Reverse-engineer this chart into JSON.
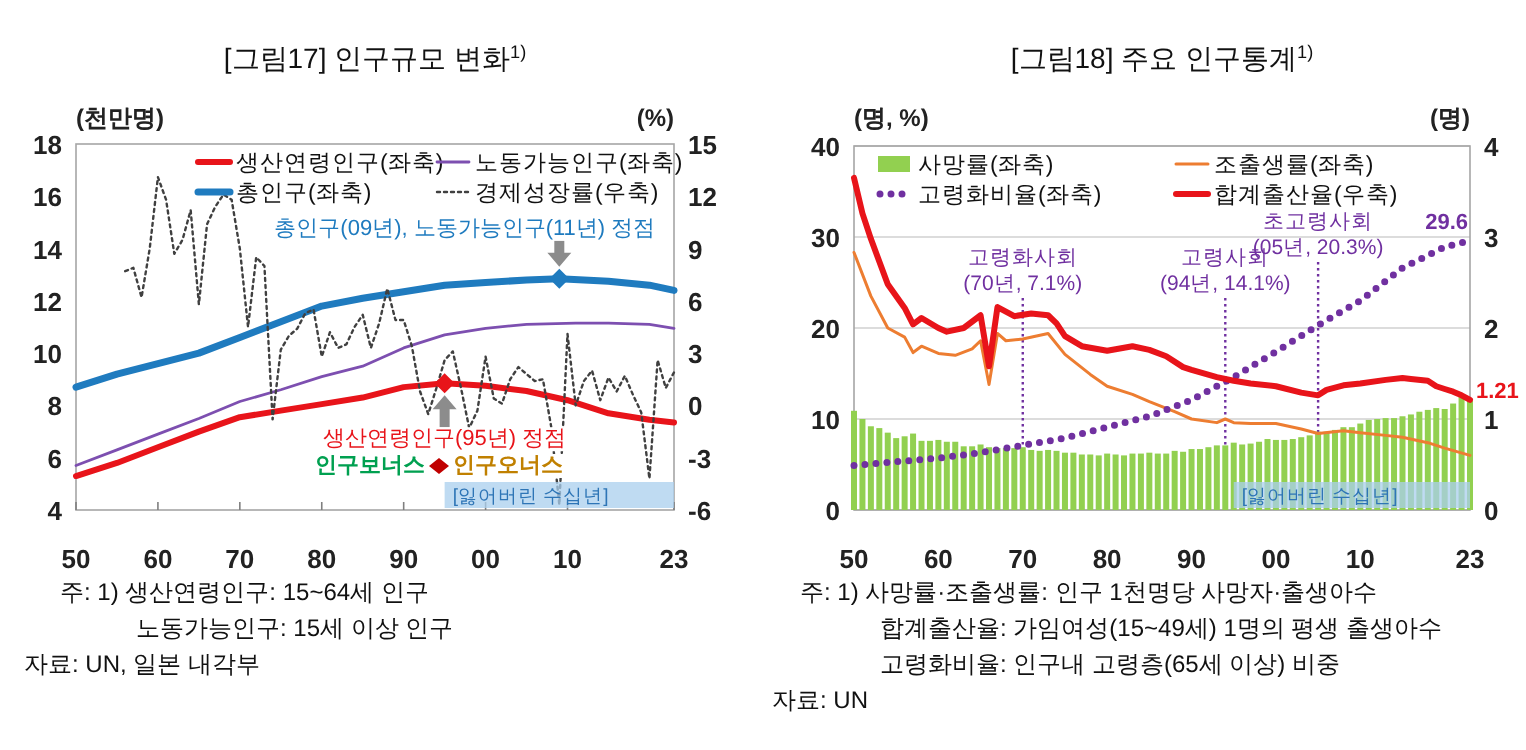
{
  "chart_data": [
    {
      "type": "line",
      "title": "[그림17] 인구규모 변화$^{1)}$",
      "ylabel": "(천만명)",
      "y2label": "(%)",
      "xlim": [
        1950,
        2023
      ],
      "xticks": [
        {
          "value": 1950,
          "label": "50"
        },
        {
          "value": 1960,
          "label": "60"
        },
        {
          "value": 1970,
          "label": "70"
        },
        {
          "value": 1980,
          "label": "80"
        },
        {
          "value": 1990,
          "label": "90"
        },
        {
          "value": 2000,
          "label": "00"
        },
        {
          "value": 2010,
          "label": "10"
        },
        {
          "value": 2023,
          "label": "23"
        }
      ],
      "ylim": [
        4,
        18
      ],
      "yticks": [
        4,
        6,
        8,
        10,
        12,
        14,
        16,
        18
      ],
      "y2lim": [
        -6,
        15
      ],
      "y2ticks": [
        -6,
        -3,
        0,
        3,
        6,
        9,
        12,
        15
      ],
      "legend": "top right",
      "grid": false,
      "series": [
        {
          "name": "생산연령인구(좌축)",
          "color": "#e8141a",
          "x": [
            1950,
            1955,
            1960,
            1965,
            1970,
            1975,
            1980,
            1985,
            1990,
            1995,
            2000,
            2005,
            2010,
            2015,
            2020,
            2023
          ],
          "values": [
            5.3,
            5.8,
            6.4,
            7.0,
            7.55,
            7.8,
            8.05,
            8.3,
            8.7,
            8.85,
            8.75,
            8.55,
            8.2,
            7.7,
            7.45,
            7.35
          ]
        },
        {
          "name": "노동가능인구(좌축)",
          "color": "#7d4fb0",
          "x": [
            1950,
            1955,
            1960,
            1965,
            1970,
            1975,
            1980,
            1985,
            1990,
            1995,
            2000,
            2005,
            2011,
            2015,
            2020,
            2023
          ],
          "values": [
            5.7,
            6.3,
            6.9,
            7.5,
            8.15,
            8.6,
            9.1,
            9.5,
            10.2,
            10.7,
            10.95,
            11.1,
            11.15,
            11.15,
            11.1,
            10.95
          ]
        },
        {
          "name": "총인구(좌축)",
          "color": "#1f7bbf",
          "x": [
            1950,
            1955,
            1960,
            1965,
            1970,
            1975,
            1980,
            1985,
            1990,
            1995,
            2000,
            2005,
            2009,
            2015,
            2020,
            2023
          ],
          "values": [
            8.7,
            9.2,
            9.6,
            10.0,
            10.6,
            11.2,
            11.8,
            12.1,
            12.35,
            12.6,
            12.7,
            12.8,
            12.85,
            12.75,
            12.6,
            12.4
          ]
        },
        {
          "name": "경제성장률(우축)",
          "color": "#404040",
          "axis": "y2",
          "line_style": "dotted",
          "x": [
            1956,
            1957,
            1958,
            1959,
            1960,
            1961,
            1962,
            1963,
            1964,
            1965,
            1966,
            1967,
            1968,
            1969,
            1970,
            1971,
            1972,
            1973,
            1974,
            1975,
            1976,
            1977,
            1978,
            1979,
            1980,
            1981,
            1982,
            1983,
            1984,
            1985,
            1986,
            1987,
            1988,
            1989,
            1990,
            1991,
            1992,
            1993,
            1994,
            1995,
            1996,
            1997,
            1998,
            1999,
            2000,
            2001,
            2002,
            2003,
            2004,
            2005,
            2006,
            2007,
            2008,
            2009,
            2010,
            2011,
            2012,
            2013,
            2014,
            2015,
            2016,
            2017,
            2018,
            2019,
            2020,
            2021,
            2022,
            2023
          ],
          "values": [
            7.7,
            7.9,
            6.2,
            9.0,
            13.1,
            11.8,
            8.7,
            9.5,
            11.2,
            5.8,
            10.4,
            11.4,
            12.1,
            11.8,
            9.0,
            4.5,
            8.5,
            8.0,
            -0.8,
            3.2,
            4.0,
            4.4,
            5.3,
            5.5,
            2.8,
            4.2,
            3.3,
            3.5,
            4.5,
            5.2,
            3.3,
            4.7,
            6.7,
            4.9,
            4.9,
            3.4,
            0.8,
            -0.5,
            1.0,
            2.6,
            3.1,
            1.0,
            -1.3,
            -0.3,
            2.8,
            0.4,
            0.1,
            1.5,
            2.2,
            1.8,
            1.4,
            1.5,
            -1.2,
            -5.7,
            4.1,
            0.0,
            1.4,
            2.0,
            0.3,
            1.6,
            0.8,
            1.7,
            0.6,
            -0.4,
            -4.2,
            2.6,
            1.0,
            1.9
          ]
        }
      ],
      "bands": [
        {
          "axis": "x",
          "from": 1995,
          "to": 2023,
          "label": "[잃어버린 수십년]",
          "color": "#a9cfee"
        }
      ],
      "annotations": [
        {
          "text": "총인구(09년), 노동가능인구(11년) 정점",
          "x": 2009,
          "y": 12.85
        },
        {
          "text": "생산연령인구(95년) 정점",
          "x": 1995,
          "y": 8.85
        },
        "인구보너스",
        "인구오너스",
        "주: 1) 생산연령인구: 15~64세 인구",
        "노동가능인구: 15세 이상 인구",
        "자료: UN, 일본 내각부"
      ]
    },
    {
      "type": "bar",
      "title": "[그림18] 주요 인구통계$^{1)}$",
      "ylabel": "(명, %)",
      "y2label": "(명)",
      "xlim": [
        1950,
        2023
      ],
      "xticks": [
        {
          "value": 1950,
          "label": "50"
        },
        {
          "value": 1960,
          "label": "60"
        },
        {
          "value": 1970,
          "label": "70"
        },
        {
          "value": 1980,
          "label": "80"
        },
        {
          "value": 1990,
          "label": "90"
        },
        {
          "value": 2000,
          "label": "00"
        },
        {
          "value": 2010,
          "label": "10"
        },
        {
          "value": 2023,
          "label": "23"
        }
      ],
      "ylim": [
        0,
        40
      ],
      "yticks": [
        0,
        10,
        20,
        30,
        40
      ],
      "y2lim": [
        0,
        4
      ],
      "y2ticks": [
        0,
        1,
        2,
        3,
        4
      ],
      "legend": "top",
      "grid": "y",
      "series": [
        {
          "name": "사망률(좌축)",
          "color": "#92d050",
          "x": [
            1950,
            1951,
            1952,
            1953,
            1954,
            1955,
            1956,
            1957,
            1958,
            1959,
            1960,
            1961,
            1962,
            1963,
            1964,
            1965,
            1966,
            1967,
            1968,
            1969,
            1970,
            1971,
            1972,
            1973,
            1974,
            1975,
            1976,
            1977,
            1978,
            1979,
            1980,
            1981,
            1982,
            1983,
            1984,
            1985,
            1986,
            1987,
            1988,
            1989,
            1990,
            1991,
            1992,
            1993,
            1994,
            1995,
            1996,
            1997,
            1998,
            1999,
            2000,
            2001,
            2002,
            2003,
            2004,
            2005,
            2006,
            2007,
            2008,
            2009,
            2010,
            2011,
            2012,
            2013,
            2014,
            2015,
            2016,
            2017,
            2018,
            2019,
            2020,
            2021,
            2022,
            2023
          ],
          "values": [
            10.9,
            10.0,
            9.2,
            9.0,
            8.5,
            7.9,
            8.1,
            8.4,
            7.6,
            7.6,
            7.7,
            7.5,
            7.5,
            7.0,
            7.0,
            7.2,
            6.9,
            6.8,
            6.8,
            6.8,
            6.9,
            6.6,
            6.5,
            6.6,
            6.5,
            6.3,
            6.3,
            6.1,
            6.1,
            6.0,
            6.2,
            6.1,
            6.0,
            6.2,
            6.2,
            6.3,
            6.2,
            6.2,
            6.5,
            6.4,
            6.7,
            6.7,
            6.9,
            7.1,
            7.1,
            7.4,
            7.2,
            7.3,
            7.5,
            7.8,
            7.7,
            7.7,
            7.8,
            8.0,
            8.2,
            8.6,
            8.6,
            8.8,
            9.1,
            9.1,
            9.5,
            9.9,
            10.0,
            10.1,
            10.1,
            10.3,
            10.5,
            10.8,
            11.0,
            11.2,
            11.1,
            11.7,
            12.5,
            12.0
          ]
        },
        {
          "name": "조출생률(좌축)",
          "type": "line",
          "color": "#ed7d31",
          "x": [
            1950,
            1952,
            1954,
            1956,
            1957,
            1958,
            1960,
            1962,
            1964,
            1965,
            1966,
            1967,
            1968,
            1970,
            1973,
            1975,
            1978,
            1980,
            1983,
            1985,
            1988,
            1990,
            1993,
            1994,
            1995,
            1997,
            2000,
            2003,
            2005,
            2008,
            2010,
            2013,
            2015,
            2018,
            2020,
            2023
          ],
          "values": [
            28.3,
            23.5,
            20,
            19,
            17.3,
            18,
            17.2,
            17,
            17.7,
            18.6,
            13.8,
            19.4,
            18.6,
            18.8,
            19.4,
            17.1,
            14.9,
            13.6,
            12.7,
            11.9,
            10.8,
            10,
            9.6,
            10,
            9.6,
            9.5,
            9.5,
            8.9,
            8.4,
            8.7,
            8.5,
            8.2,
            8,
            7.4,
            6.8,
            6
          ]
        },
        {
          "name": "고령화비율(좌축)",
          "type": "line",
          "line_style": "dotted",
          "color": "#7030a0",
          "x": [
            1950,
            1955,
            1960,
            1965,
            1970,
            1975,
            1980,
            1985,
            1990,
            1994,
            1995,
            2000,
            2005,
            2010,
            2015,
            2020,
            2023
          ],
          "values": [
            4.9,
            5.3,
            5.7,
            6.3,
            7.1,
            7.9,
            9.1,
            10.3,
            12.1,
            14.1,
            14.6,
            17.4,
            20.3,
            23,
            26.6,
            28.9,
            29.6
          ],
          "value_labels": [
            null,
            null,
            null,
            null,
            null,
            null,
            null,
            null,
            null,
            null,
            null,
            null,
            null,
            null,
            null,
            null,
            "29.6"
          ]
        },
        {
          "name": "합계출산율(우축)",
          "type": "line",
          "axis": "y2",
          "color": "#e8141a",
          "x": [
            1950,
            1951,
            1952,
            1954,
            1956,
            1957,
            1958,
            1960,
            1961,
            1963,
            1965,
            1966,
            1967,
            1969,
            1971,
            1973,
            1974,
            1975,
            1977,
            1980,
            1983,
            1985,
            1987,
            1989,
            1990,
            1993,
            1995,
            1997,
            2000,
            2003,
            2005,
            2006,
            2008,
            2010,
            2013,
            2015,
            2016,
            2018,
            2019,
            2020,
            2021,
            2022,
            2023
          ],
          "values": [
            3.65,
            3.26,
            2.98,
            2.48,
            2.22,
            2.04,
            2.11,
            2.0,
            1.96,
            2.0,
            2.14,
            1.58,
            2.23,
            2.13,
            2.16,
            2.14,
            2.05,
            1.91,
            1.8,
            1.75,
            1.8,
            1.76,
            1.69,
            1.57,
            1.54,
            1.46,
            1.42,
            1.39,
            1.36,
            1.29,
            1.26,
            1.32,
            1.37,
            1.39,
            1.43,
            1.45,
            1.44,
            1.42,
            1.36,
            1.33,
            1.3,
            1.26,
            1.21
          ],
          "value_labels": [
            null,
            null,
            null,
            null,
            null,
            null,
            null,
            null,
            null,
            null,
            null,
            null,
            null,
            null,
            null,
            null,
            null,
            null,
            null,
            null,
            null,
            null,
            null,
            null,
            null,
            null,
            null,
            null,
            null,
            null,
            null,
            null,
            null,
            null,
            null,
            null,
            null,
            null,
            null,
            null,
            null,
            null,
            "1.21"
          ]
        }
      ],
      "ref_lines": [
        {
          "axis": "x",
          "value": 1970,
          "label": "고령화사회 (70년, 7.1%)",
          "color": "#7030a0",
          "line_style": "dotted"
        },
        {
          "axis": "x",
          "value": 1994,
          "label": "고령사회 (94년, 14.1%)",
          "color": "#7030a0",
          "line_style": "dotted"
        },
        {
          "axis": "x",
          "value": 2005,
          "label": "초고령사회 (05년, 20.3%)",
          "color": "#7030a0",
          "line_style": "dotted"
        }
      ],
      "bands": [
        {
          "axis": "x",
          "from": 1995,
          "to": 2023,
          "label": "[잃어버린 수십년]",
          "color": "#a9cfee"
        }
      ],
      "annotations": [
        "주: 1) 사망률·조출생률: 인구 1천명당 사망자·출생아수",
        "합계출산율: 가임여성(15~49세) 1명의 평생 출생아수",
        "고령화비율: 인구내 고령층(65세 이상) 비중",
        "자료: UN"
      ]
    }
  ]
}
